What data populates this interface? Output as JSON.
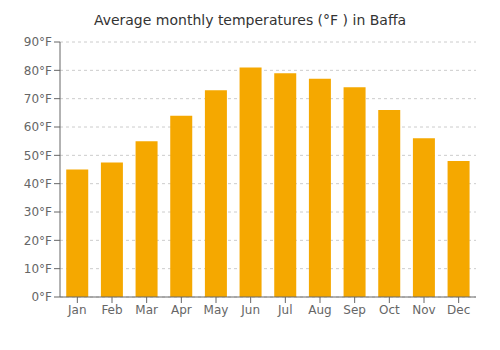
{
  "chart_data": {
    "type": "bar",
    "title": "Average monthly temperatures (°F ) in Baffa",
    "categories": [
      "Jan",
      "Feb",
      "Mar",
      "Apr",
      "May",
      "Jun",
      "Jul",
      "Aug",
      "Sep",
      "Oct",
      "Nov",
      "Dec"
    ],
    "values": [
      45,
      47.5,
      55,
      64,
      73,
      81,
      79,
      77,
      74,
      66,
      56,
      48
    ],
    "color": "#F5A800",
    "ylim": [
      0,
      90
    ],
    "yticks": [
      {
        "value": 0,
        "label": "0°F"
      },
      {
        "value": 10,
        "label": "10°F"
      },
      {
        "value": 20,
        "label": "20°F"
      },
      {
        "value": 30,
        "label": "30°F"
      },
      {
        "value": 40,
        "label": "40°F"
      },
      {
        "value": 50,
        "label": "50°F"
      },
      {
        "value": 60,
        "label": "60°F"
      },
      {
        "value": 70,
        "label": "70°F"
      },
      {
        "value": 80,
        "label": "80°F"
      },
      {
        "value": 90,
        "label": "90°F"
      }
    ],
    "grid": true
  }
}
